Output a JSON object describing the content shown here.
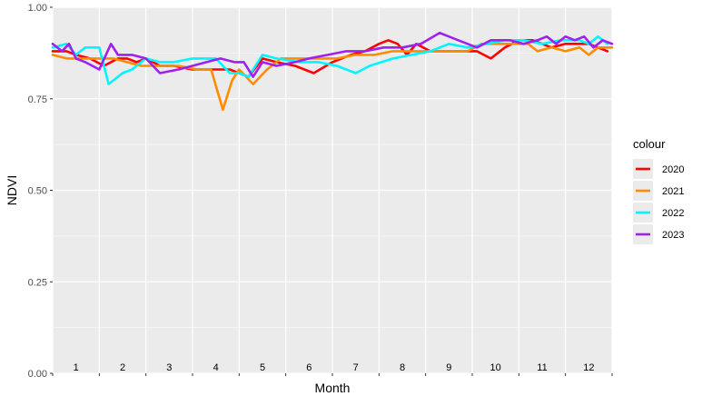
{
  "chart_data": {
    "type": "line",
    "xlabel": "Month",
    "ylabel": "NDVI",
    "ylim": [
      0,
      1
    ],
    "xlim": [
      0.5,
      12.5
    ],
    "y_ticks": [
      {
        "value": 0,
        "label": "0.00"
      },
      {
        "value": 0.25,
        "label": "0.25"
      },
      {
        "value": 0.5,
        "label": "0.50"
      },
      {
        "value": 0.75,
        "label": "0.75"
      },
      {
        "value": 1,
        "label": "1.00"
      }
    ],
    "month_labels": [
      "1",
      "2",
      "3",
      "4",
      "5",
      "6",
      "7",
      "8",
      "9",
      "10",
      "11",
      "12"
    ],
    "grid": true,
    "legend": {
      "title": "colour",
      "position": "right"
    },
    "series": [
      {
        "name": "2020",
        "color": "#ff0000",
        "x": [
          0.5,
          0.8,
          1.0,
          1.3,
          1.6,
          1.9,
          2.1,
          2.3,
          2.5,
          2.8,
          3.1,
          3.5,
          3.9,
          4.3,
          4.5,
          4.7,
          5.0,
          5.3,
          5.7,
          6.1,
          6.5,
          6.9,
          7.2,
          7.5,
          7.7,
          7.9,
          8.1,
          8.3,
          8.6,
          8.9,
          9.3,
          9.6,
          9.9,
          10.2,
          10.5,
          10.8,
          11.0,
          11.2,
          11.5,
          11.8,
          12.0,
          12.2,
          12.4
        ],
        "y": [
          0.88,
          0.88,
          0.87,
          0.86,
          0.84,
          0.86,
          0.86,
          0.85,
          0.86,
          0.84,
          0.84,
          0.83,
          0.83,
          0.83,
          0.82,
          0.81,
          0.86,
          0.85,
          0.84,
          0.82,
          0.85,
          0.87,
          0.88,
          0.9,
          0.91,
          0.9,
          0.87,
          0.9,
          0.88,
          0.88,
          0.88,
          0.88,
          0.86,
          0.89,
          0.91,
          0.91,
          0.9,
          0.89,
          0.9,
          0.9,
          0.9,
          0.89,
          0.88
        ]
      },
      {
        "name": "2021",
        "color": "#ff8c00",
        "x": [
          0.5,
          0.8,
          1.1,
          1.5,
          1.8,
          2.1,
          2.4,
          2.8,
          3.2,
          3.6,
          3.9,
          4.15,
          4.35,
          4.5,
          4.8,
          5.1,
          5.4,
          5.8,
          6.2,
          6.6,
          7.0,
          7.4,
          7.8,
          8.2,
          8.6,
          9.0,
          9.4,
          9.7,
          10.0,
          10.4,
          10.7,
          10.9,
          11.2,
          11.5,
          11.8,
          12.0,
          12.2,
          12.5
        ],
        "y": [
          0.87,
          0.86,
          0.86,
          0.86,
          0.86,
          0.85,
          0.84,
          0.84,
          0.84,
          0.83,
          0.83,
          0.72,
          0.8,
          0.83,
          0.79,
          0.83,
          0.86,
          0.86,
          0.86,
          0.86,
          0.87,
          0.87,
          0.88,
          0.88,
          0.88,
          0.88,
          0.88,
          0.9,
          0.9,
          0.9,
          0.9,
          0.88,
          0.89,
          0.88,
          0.89,
          0.87,
          0.89,
          0.89
        ]
      },
      {
        "name": "2022",
        "color": "#00f5ff",
        "x": [
          0.5,
          0.8,
          1.0,
          1.2,
          1.5,
          1.7,
          2.0,
          2.2,
          2.5,
          2.8,
          3.1,
          3.5,
          3.9,
          4.0,
          4.3,
          4.5,
          4.7,
          5.0,
          5.3,
          5.8,
          6.2,
          6.6,
          7.0,
          7.3,
          7.8,
          8.2,
          8.6,
          9.0,
          9.4,
          9.8,
          10.2,
          10.6,
          11.0,
          11.4,
          11.8,
          12.0,
          12.2,
          12.4
        ],
        "y": [
          0.89,
          0.9,
          0.87,
          0.89,
          0.89,
          0.79,
          0.82,
          0.83,
          0.86,
          0.85,
          0.85,
          0.86,
          0.86,
          0.86,
          0.82,
          0.82,
          0.81,
          0.87,
          0.86,
          0.85,
          0.85,
          0.84,
          0.82,
          0.84,
          0.86,
          0.87,
          0.88,
          0.9,
          0.89,
          0.9,
          0.91,
          0.91,
          0.9,
          0.91,
          0.91,
          0.9,
          0.92,
          0.9
        ]
      },
      {
        "name": "2023",
        "color": "#a020f0",
        "x": [
          0.5,
          0.7,
          0.85,
          1.0,
          1.2,
          1.5,
          1.75,
          1.9,
          2.2,
          2.5,
          2.8,
          3.2,
          3.5,
          3.8,
          4.1,
          4.4,
          4.6,
          4.8,
          5.0,
          5.3,
          5.7,
          6.0,
          6.4,
          6.8,
          7.2,
          7.6,
          8.0,
          8.4,
          8.8,
          9.2,
          9.6,
          9.9,
          10.3,
          10.6,
          10.9,
          11.1,
          11.3,
          11.5,
          11.7,
          11.9,
          12.1,
          12.3,
          12.5
        ],
        "y": [
          0.9,
          0.88,
          0.9,
          0.86,
          0.85,
          0.83,
          0.9,
          0.87,
          0.87,
          0.86,
          0.82,
          0.83,
          0.84,
          0.85,
          0.86,
          0.85,
          0.85,
          0.81,
          0.85,
          0.84,
          0.85,
          0.86,
          0.87,
          0.88,
          0.88,
          0.89,
          0.89,
          0.9,
          0.93,
          0.91,
          0.89,
          0.91,
          0.91,
          0.9,
          0.91,
          0.92,
          0.9,
          0.92,
          0.91,
          0.92,
          0.89,
          0.91,
          0.9
        ]
      }
    ]
  }
}
